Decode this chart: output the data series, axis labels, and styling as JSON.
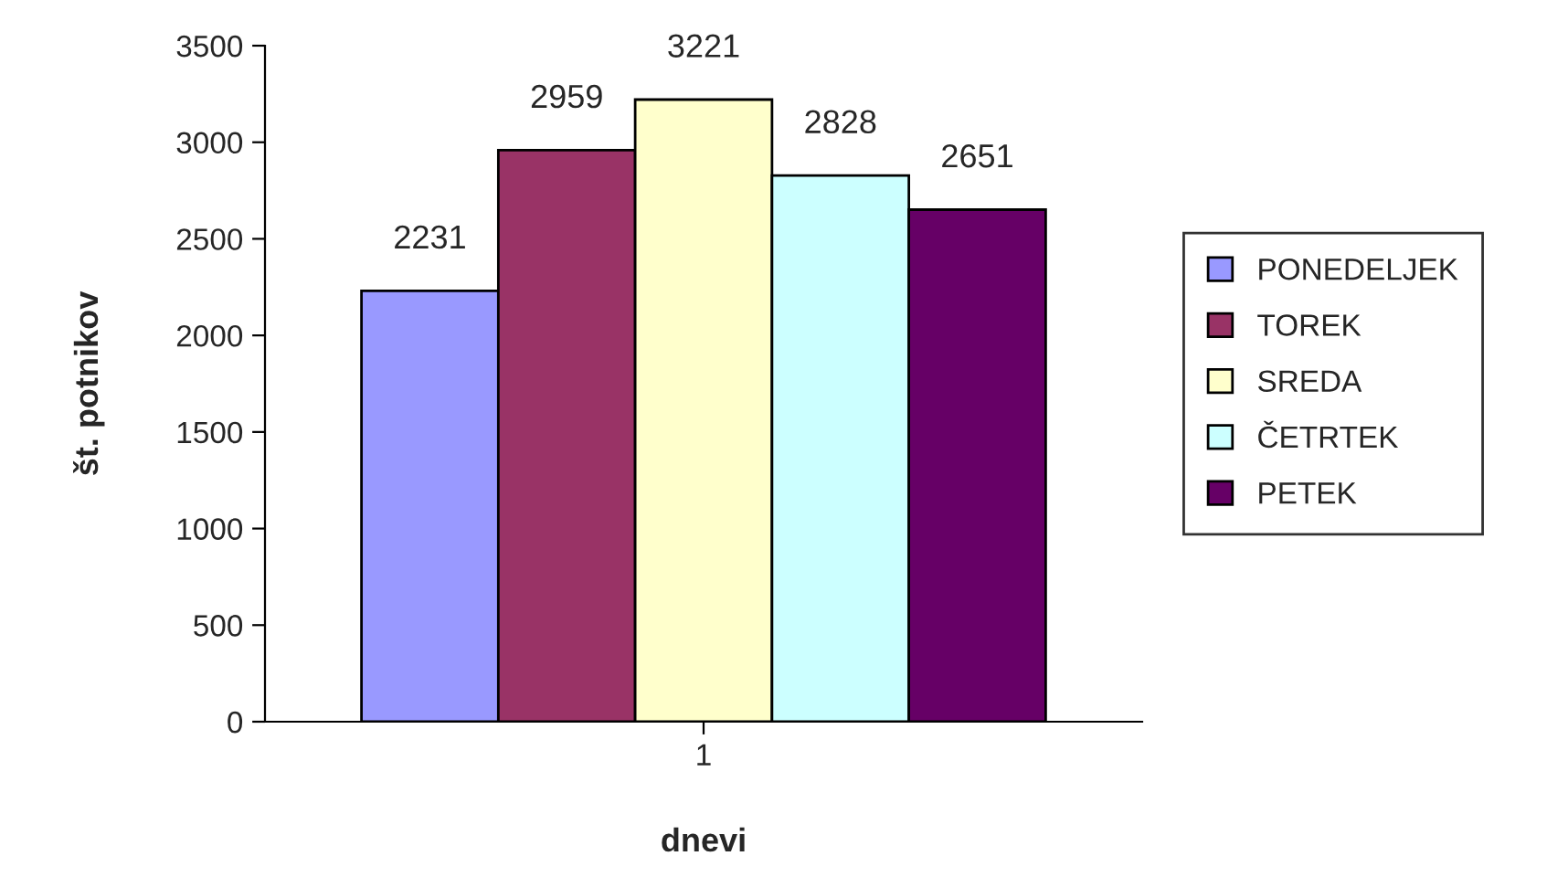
{
  "chart_data": {
    "type": "bar",
    "xlabel": "dnevi",
    "ylabel": "št. potnikov",
    "categories": [
      "1"
    ],
    "series": [
      {
        "name": "PONEDELJEK",
        "color": "#9999ff",
        "values": [
          2231
        ]
      },
      {
        "name": "TOREK",
        "color": "#993366",
        "values": [
          2959
        ]
      },
      {
        "name": "SREDA",
        "color": "#ffffcc",
        "values": [
          3221
        ]
      },
      {
        "name": "ČETRTEK",
        "color": "#ccffff",
        "values": [
          2828
        ]
      },
      {
        "name": "PETEK",
        "color": "#660066",
        "values": [
          2651
        ]
      }
    ],
    "ylim": [
      0,
      3500
    ],
    "yticks": [
      0,
      500,
      1000,
      1500,
      2000,
      2500,
      3000,
      3500
    ],
    "data_labels": true,
    "grid": false,
    "legend": "right"
  }
}
